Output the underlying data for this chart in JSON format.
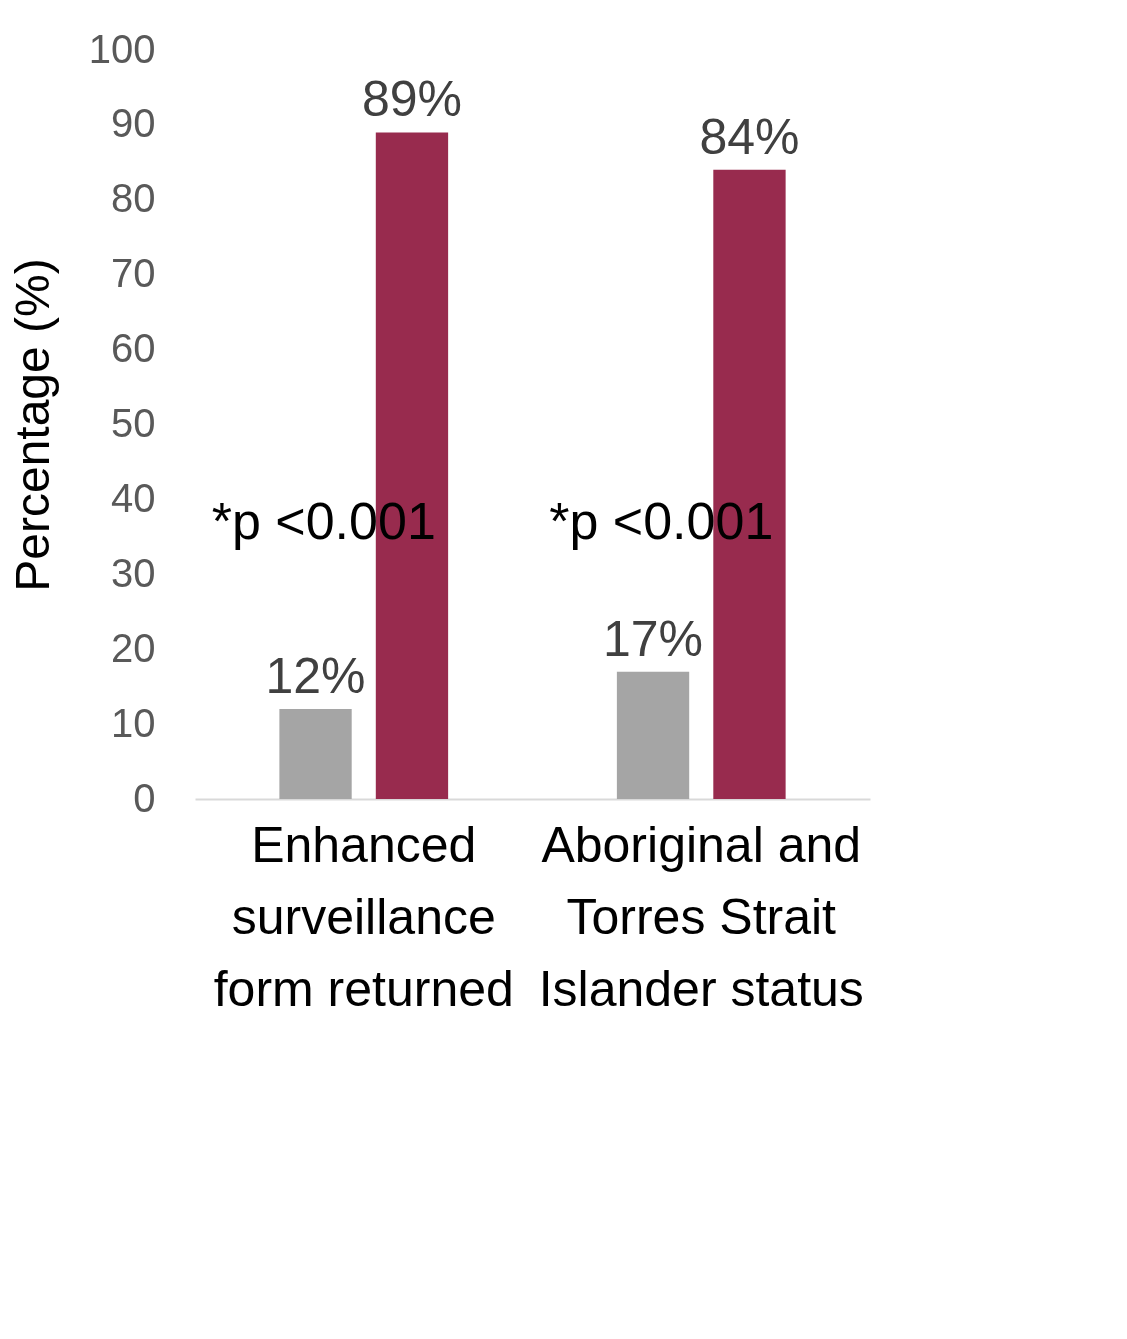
{
  "chart_data": {
    "type": "bar",
    "ylabel": "Percentage (%)",
    "categories": [
      "Enhanced surveillance form returned",
      "Aboriginal and Torres Strait Islander status"
    ],
    "series": [
      {
        "color": "#a5a5a5",
        "values": [
          12,
          17
        ],
        "value_labels": [
          "12%",
          "17%"
        ]
      },
      {
        "color": "#982b4e",
        "values": [
          89,
          84
        ],
        "value_labels": [
          "89%",
          "84%"
        ]
      }
    ],
    "ylim": [
      0,
      100
    ],
    "yticks": [
      0,
      10,
      20,
      30,
      40,
      50,
      60,
      70,
      80,
      90,
      100
    ],
    "grid": false,
    "legend": false,
    "annotations": [
      "*p <0.001",
      "*p <0.001"
    ]
  }
}
